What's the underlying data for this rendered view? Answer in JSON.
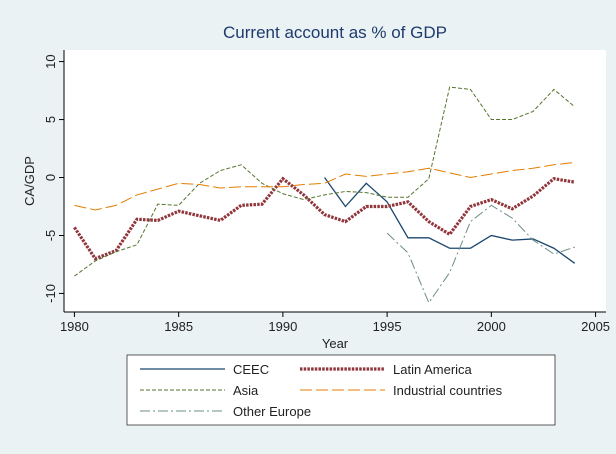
{
  "chart_data": {
    "type": "line",
    "title": "Current account as % of GDP",
    "x_label": "Year",
    "y_label": "CA/GDP",
    "x": [
      1980,
      1981,
      1982,
      1983,
      1984,
      1985,
      1986,
      1987,
      1988,
      1989,
      1990,
      1991,
      1992,
      1993,
      1994,
      1995,
      1996,
      1997,
      1998,
      1999,
      2000,
      2001,
      2002,
      2003,
      2004
    ],
    "series": [
      {
        "name": "CEEC",
        "color": "#1a476f",
        "values": [
          null,
          null,
          null,
          null,
          null,
          null,
          null,
          null,
          null,
          null,
          null,
          null,
          0,
          -2.5,
          -0.5,
          -2.1,
          -5.2,
          -5.2,
          -6.1,
          -6.1,
          -5.0,
          -5.4,
          -5.3,
          -6.1,
          -7.4
        ]
      },
      {
        "name": "Latin America",
        "color": "#90353b",
        "values": [
          -4.3,
          -7.0,
          -6.3,
          -3.6,
          -3.7,
          -2.9,
          -3.3,
          -3.7,
          -2.4,
          -2.3,
          -0.1,
          -1.5,
          -3.2,
          -3.8,
          -2.5,
          -2.5,
          -2.1,
          -3.8,
          -4.9,
          -2.5,
          -1.9,
          -2.7,
          -1.6,
          -0.1,
          -0.4
        ]
      },
      {
        "name": "Asia",
        "color": "#55752f",
        "values": [
          -8.5,
          -7.2,
          -6.4,
          -5.8,
          -2.3,
          -2.4,
          -0.5,
          0.6,
          1.1,
          -0.5,
          -1.4,
          -1.9,
          -1.5,
          -1.2,
          -1.3,
          -1.7,
          -1.7,
          -0.1,
          7.8,
          7.6,
          5.0,
          5.0,
          5.7,
          7.6,
          6.1
        ]
      },
      {
        "name": "Industrial countries",
        "color": "#e37e00",
        "values": [
          -2.4,
          -2.8,
          -2.4,
          -1.5,
          -1.0,
          -0.5,
          -0.6,
          -0.9,
          -0.8,
          -0.8,
          -0.8,
          -0.6,
          -0.5,
          0.3,
          0.1,
          0.3,
          0.5,
          0.8,
          0.4,
          0.0,
          0.3,
          0.6,
          0.8,
          1.1,
          1.3
        ]
      },
      {
        "name": "Other Europe",
        "color": "#6e8e84",
        "values": [
          null,
          null,
          null,
          null,
          null,
          null,
          null,
          null,
          null,
          null,
          null,
          null,
          null,
          null,
          null,
          -4.8,
          -6.5,
          -10.8,
          -8.2,
          -3.8,
          -2.4,
          -3.5,
          -5.4,
          -6.6,
          -6.0
        ]
      }
    ],
    "xlim": [
      1979.5,
      2005.5
    ],
    "xticks": [
      1980,
      1985,
      1990,
      1995,
      2000,
      2005
    ],
    "ylim": [
      -11.6,
      11
    ],
    "yticks": [
      -10,
      -5,
      0,
      5,
      10
    ],
    "grid": false
  }
}
